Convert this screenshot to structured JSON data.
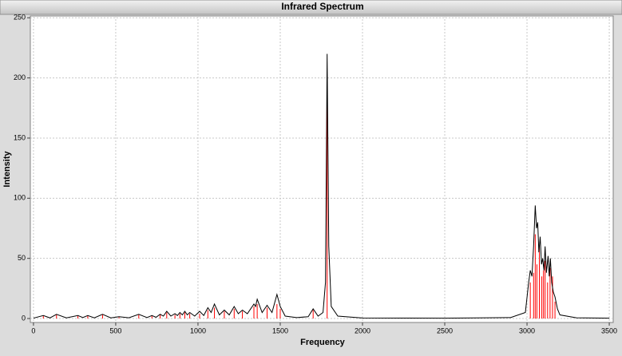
{
  "chart_data": {
    "type": "line",
    "title": "Infrared Spectrum",
    "x_label": "Frequency",
    "y_label": "Intensity",
    "xlim": [
      -19,
      3524
    ],
    "ylim": [
      -3.3,
      251.5
    ],
    "xticks": [
      0,
      500,
      1000,
      1500,
      2000,
      2500,
      3000,
      3500
    ],
    "yticks": [
      0,
      50,
      100,
      150,
      200,
      250
    ],
    "grid": true,
    "series": [
      {
        "kind": "sticks",
        "color": "#ff0000",
        "x": [
          60,
          140,
          270,
          330,
          420,
          520,
          640,
          720,
          770,
          810,
          860,
          890,
          920,
          950,
          1010,
          1060,
          1100,
          1160,
          1220,
          1270,
          1340,
          1360,
          1420,
          1480,
          1500,
          1700,
          1785,
          3020,
          3040,
          3050,
          3060,
          3075,
          3090,
          3100,
          3110,
          3125,
          3140,
          3155,
          3170
        ],
        "values": [
          2,
          3,
          2,
          2,
          3,
          1,
          3,
          2,
          3,
          5,
          3,
          4,
          5,
          4,
          4,
          7,
          9,
          6,
          8,
          6,
          10,
          12,
          9,
          12,
          8,
          7,
          180,
          30,
          38,
          70,
          45,
          60,
          35,
          40,
          48,
          30,
          42,
          35,
          14
        ]
      },
      {
        "kind": "line",
        "color": "#000000",
        "x": [
          0,
          60,
          100,
          140,
          200,
          270,
          300,
          330,
          370,
          420,
          470,
          520,
          580,
          640,
          690,
          720,
          745,
          770,
          790,
          810,
          835,
          860,
          875,
          890,
          905,
          920,
          935,
          950,
          980,
          1010,
          1035,
          1060,
          1080,
          1100,
          1130,
          1160,
          1190,
          1220,
          1245,
          1270,
          1300,
          1340,
          1350,
          1360,
          1390,
          1420,
          1450,
          1480,
          1500,
          1530,
          1600,
          1670,
          1700,
          1730,
          1760,
          1775,
          1785,
          1795,
          1810,
          1850,
          2000,
          2500,
          2900,
          2990,
          3010,
          3020,
          3030,
          3040,
          3050,
          3058,
          3065,
          3072,
          3080,
          3088,
          3095,
          3103,
          3110,
          3118,
          3128,
          3135,
          3142,
          3150,
          3160,
          3170,
          3185,
          3200,
          3300,
          3500
        ],
        "values": [
          0.3,
          2.5,
          0.5,
          3.5,
          0.5,
          2.5,
          0.8,
          2.5,
          0.5,
          3.5,
          0.5,
          1.5,
          0.6,
          3.5,
          0.8,
          2.5,
          1,
          3.5,
          2,
          6,
          2,
          4,
          2.5,
          5,
          3,
          6,
          3,
          5,
          2,
          6,
          2.5,
          9,
          5,
          12,
          3,
          7,
          3,
          10,
          4,
          7,
          4,
          12,
          10,
          16,
          5,
          11,
          5,
          20,
          10,
          2,
          0.8,
          1.5,
          8,
          2,
          5,
          30,
          220,
          60,
          10,
          2,
          0.4,
          0.3,
          0.8,
          5,
          30,
          40,
          35,
          60,
          94,
          75,
          80,
          55,
          68,
          45,
          50,
          40,
          60,
          38,
          52,
          35,
          50,
          30,
          22,
          18,
          8,
          3,
          0.6,
          0.3
        ]
      }
    ]
  }
}
